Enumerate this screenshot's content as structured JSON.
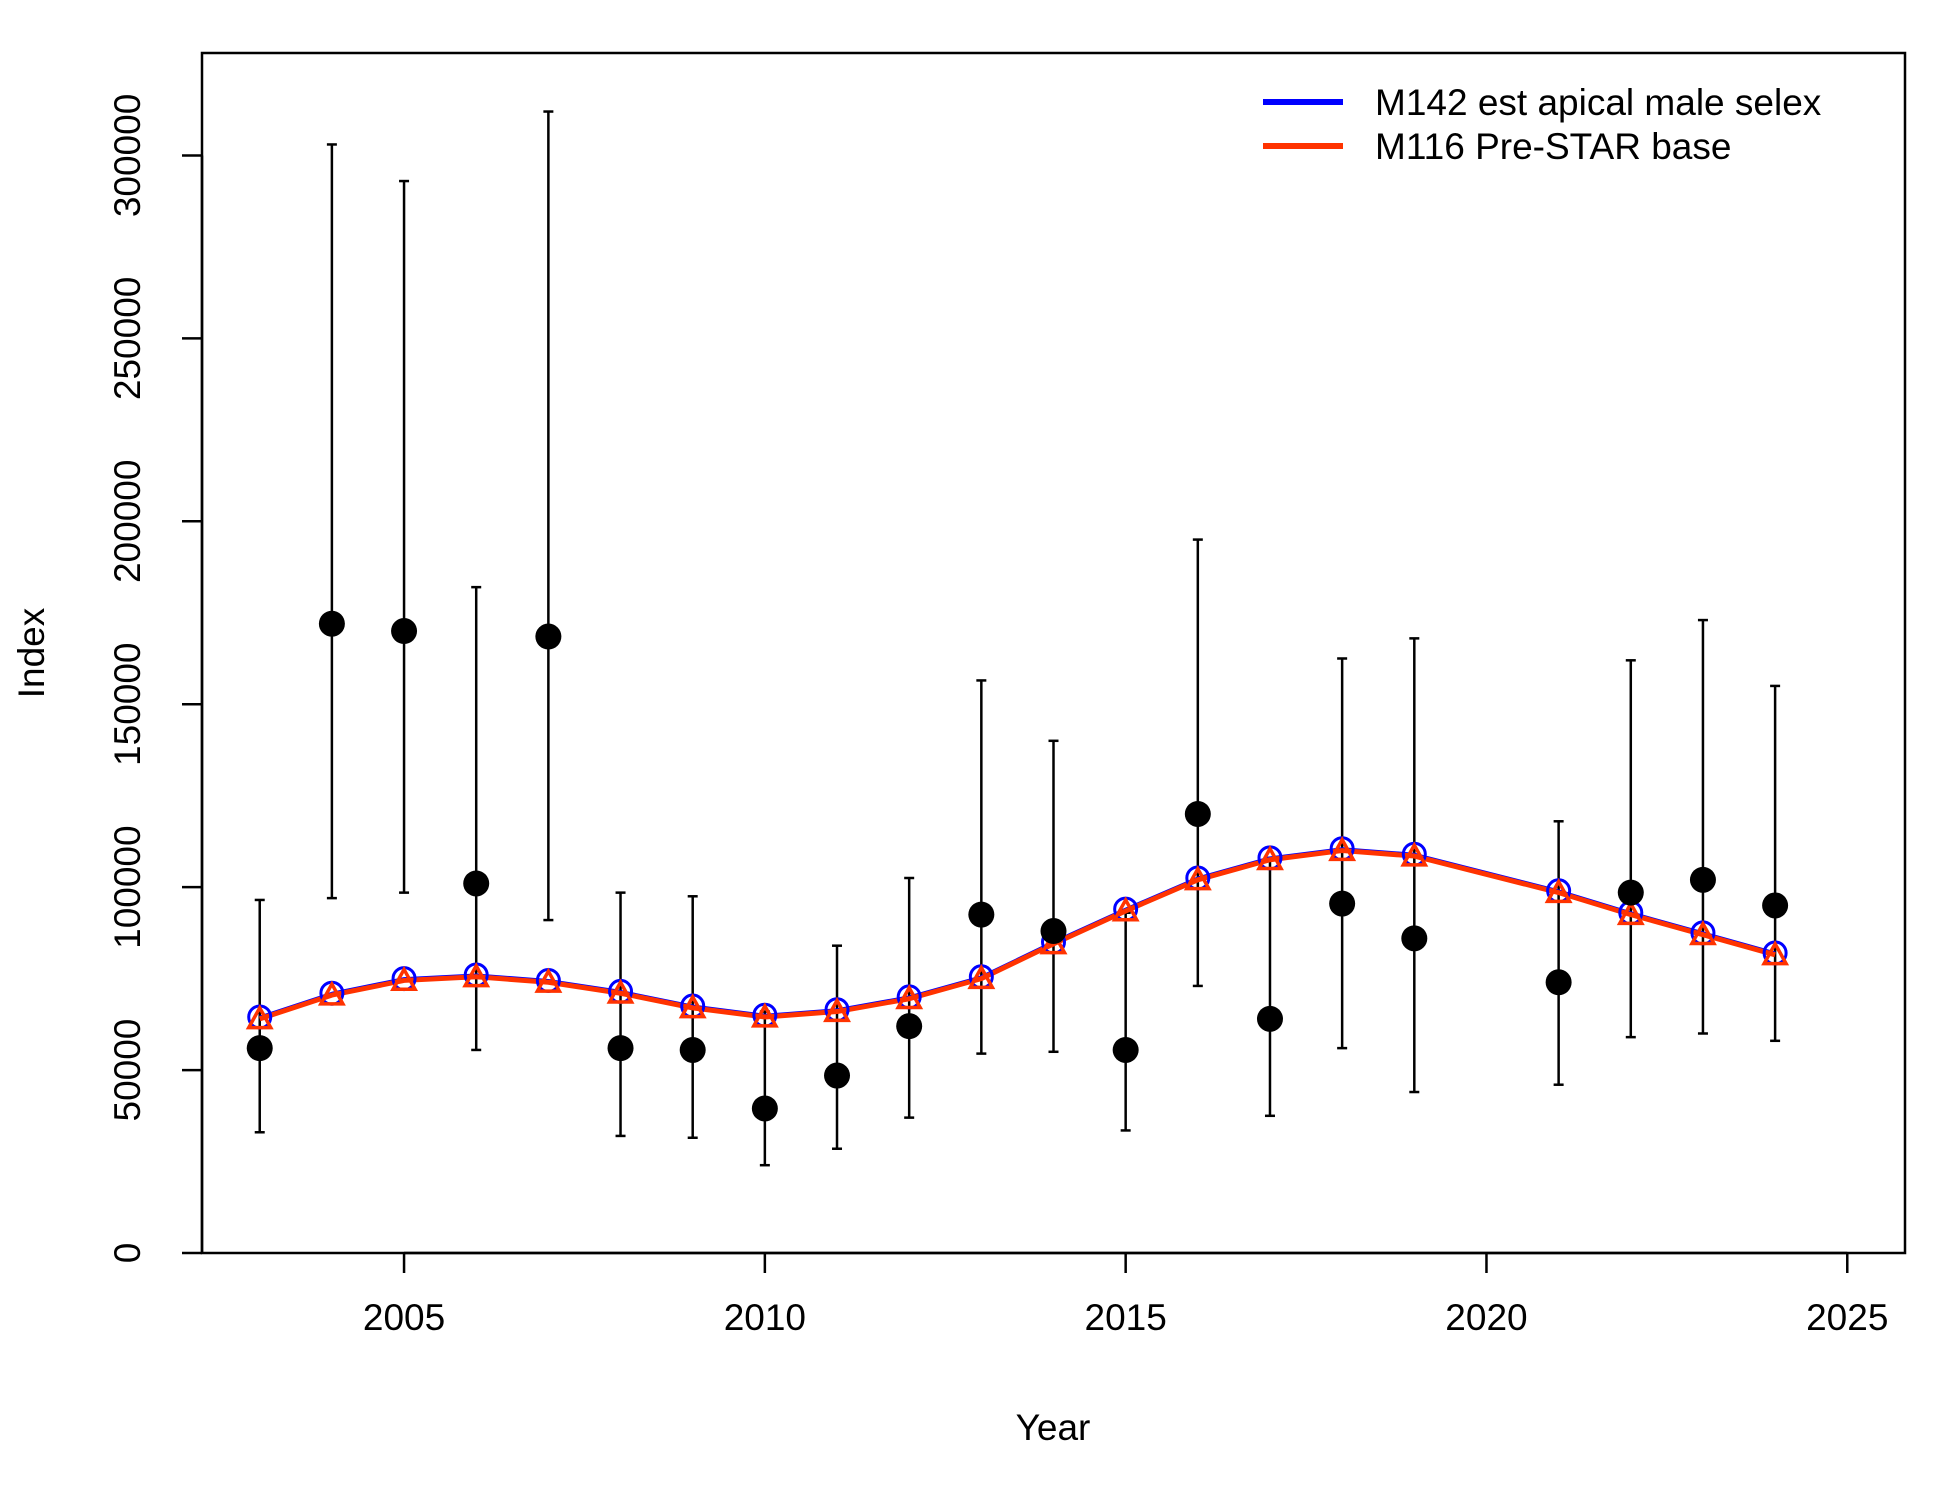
{
  "chart_data": {
    "type": "line",
    "title": "",
    "xlabel": "Year",
    "ylabel": "Index",
    "xlim": [
      2002.2,
      2025.8
    ],
    "ylim": [
      0,
      328000
    ],
    "x_ticks": [
      2005,
      2010,
      2015,
      2020,
      2025
    ],
    "y_ticks": [
      0,
      50000,
      100000,
      150000,
      200000,
      250000,
      300000
    ],
    "grid": false,
    "legend_position": "top-right",
    "observations": {
      "x": [
        2003,
        2004,
        2005,
        2006,
        2007,
        2008,
        2009,
        2010,
        2011,
        2012,
        2013,
        2014,
        2015,
        2016,
        2017,
        2018,
        2019,
        2021,
        2022,
        2023,
        2024
      ],
      "y": [
        56000,
        172000,
        170000,
        101000,
        168500,
        56000,
        55500,
        39500,
        48500,
        62000,
        92500,
        88000,
        55500,
        120000,
        64000,
        95500,
        86000,
        74000,
        98500,
        102000,
        95000
      ],
      "lower": [
        33000,
        97000,
        98500,
        55500,
        91000,
        32000,
        31500,
        24000,
        28500,
        37000,
        54500,
        55000,
        33500,
        73000,
        37500,
        56000,
        44000,
        46000,
        59000,
        60000,
        58000
      ],
      "upper": [
        96500,
        303000,
        293000,
        182000,
        312000,
        98500,
        97500,
        66000,
        84000,
        102500,
        156500,
        140000,
        93000,
        195000,
        108000,
        162500,
        168000,
        118000,
        162000,
        173000,
        155000
      ]
    },
    "series": [
      {
        "name": "M142 est apical male selex",
        "color": "#0000ff",
        "x": [
          2003,
          2004,
          2005,
          2006,
          2007,
          2008,
          2009,
          2010,
          2011,
          2012,
          2013,
          2014,
          2015,
          2016,
          2017,
          2018,
          2019,
          2021,
          2022,
          2023,
          2024
        ],
        "values": [
          64500,
          71000,
          75000,
          76000,
          74500,
          71500,
          67500,
          65000,
          66500,
          70000,
          75500,
          85000,
          94000,
          102500,
          108000,
          110500,
          109000,
          99000,
          93000,
          87500,
          82000
        ]
      },
      {
        "name": "M116 Pre-STAR base",
        "color": "#ff3300",
        "x": [
          2003,
          2004,
          2005,
          2006,
          2007,
          2008,
          2009,
          2010,
          2011,
          2012,
          2013,
          2014,
          2015,
          2016,
          2017,
          2018,
          2019,
          2021,
          2022,
          2023,
          2024
        ],
        "values": [
          64000,
          70500,
          74500,
          75500,
          74000,
          71000,
          67000,
          64500,
          66000,
          69500,
          75000,
          84500,
          93500,
          102000,
          107500,
          110000,
          108500,
          98500,
          92500,
          87000,
          81500
        ]
      }
    ]
  }
}
